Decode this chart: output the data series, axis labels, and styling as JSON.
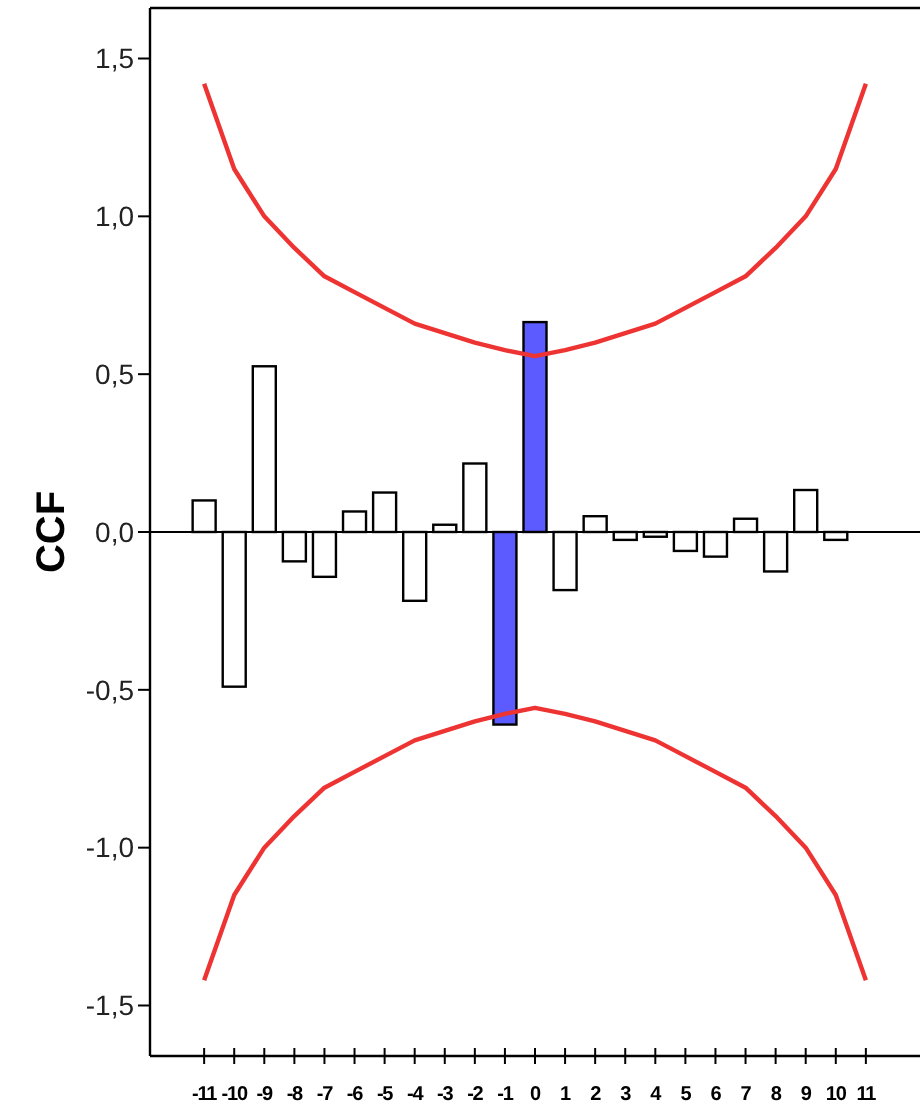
{
  "chart_data": {
    "type": "bar",
    "ylabel": "CCF",
    "categories": [
      "-11",
      "-10",
      "-9",
      "-8",
      "-7",
      "-6",
      "-5",
      "-4",
      "-3",
      "-2",
      "-1",
      "0",
      "1",
      "2",
      "3",
      "4",
      "5",
      "6",
      "7",
      "8",
      "9",
      "10",
      "11"
    ],
    "ylim": [
      -1.66,
      1.66
    ],
    "yticks": [
      {
        "value": -1.5,
        "label": "-1,5"
      },
      {
        "value": -1,
        "label": "-1,0"
      },
      {
        "value": -0.5,
        "label": "-0,5"
      },
      {
        "value": 0,
        "label": "0,0"
      },
      {
        "value": 0.5,
        "label": "0,5"
      },
      {
        "value": 1,
        "label": "1,0"
      },
      {
        "value": 1.5,
        "label": "1,5"
      }
    ],
    "series": [
      {
        "values": [
          0.1,
          -0.49,
          0.525,
          -0.093,
          -0.142,
          0.065,
          0.125,
          -0.218,
          0.023,
          0.217,
          -0.61,
          0.665,
          -0.184,
          0.05,
          -0.025,
          -0.015,
          -0.06,
          -0.078,
          0.042,
          -0.125,
          0.133,
          -0.025,
          null
        ],
        "colors": [
          "#ffffff",
          "#ffffff",
          "#ffffff",
          "#ffffff",
          "#ffffff",
          "#ffffff",
          "#ffffff",
          "#ffffff",
          "#ffffff",
          "#ffffff",
          "#5b5bff",
          "#5b5bff",
          "#ffffff",
          "#ffffff",
          "#ffffff",
          "#ffffff",
          "#ffffff",
          "#ffffff",
          "#ffffff",
          "#ffffff",
          "#ffffff",
          "#ffffff",
          null
        ]
      },
      {
        "type": "line",
        "color": "#ee3333",
        "values": [
          1.42,
          1.15,
          1.0,
          0.9,
          0.81,
          0.76,
          0.71,
          0.66,
          0.63,
          0.6,
          0.576,
          0.557,
          0.576,
          0.6,
          0.63,
          0.66,
          0.71,
          0.76,
          0.81,
          0.9,
          1.0,
          1.15,
          1.42
        ]
      },
      {
        "type": "line",
        "color": "#ee3333",
        "values": [
          -1.42,
          -1.15,
          -1.0,
          -0.9,
          -0.81,
          -0.76,
          -0.71,
          -0.66,
          -0.63,
          -0.6,
          -0.576,
          -0.557,
          -0.576,
          -0.6,
          -0.63,
          -0.66,
          -0.71,
          -0.76,
          -0.81,
          -0.9,
          -1.0,
          -1.15,
          -1.42
        ]
      }
    ]
  }
}
